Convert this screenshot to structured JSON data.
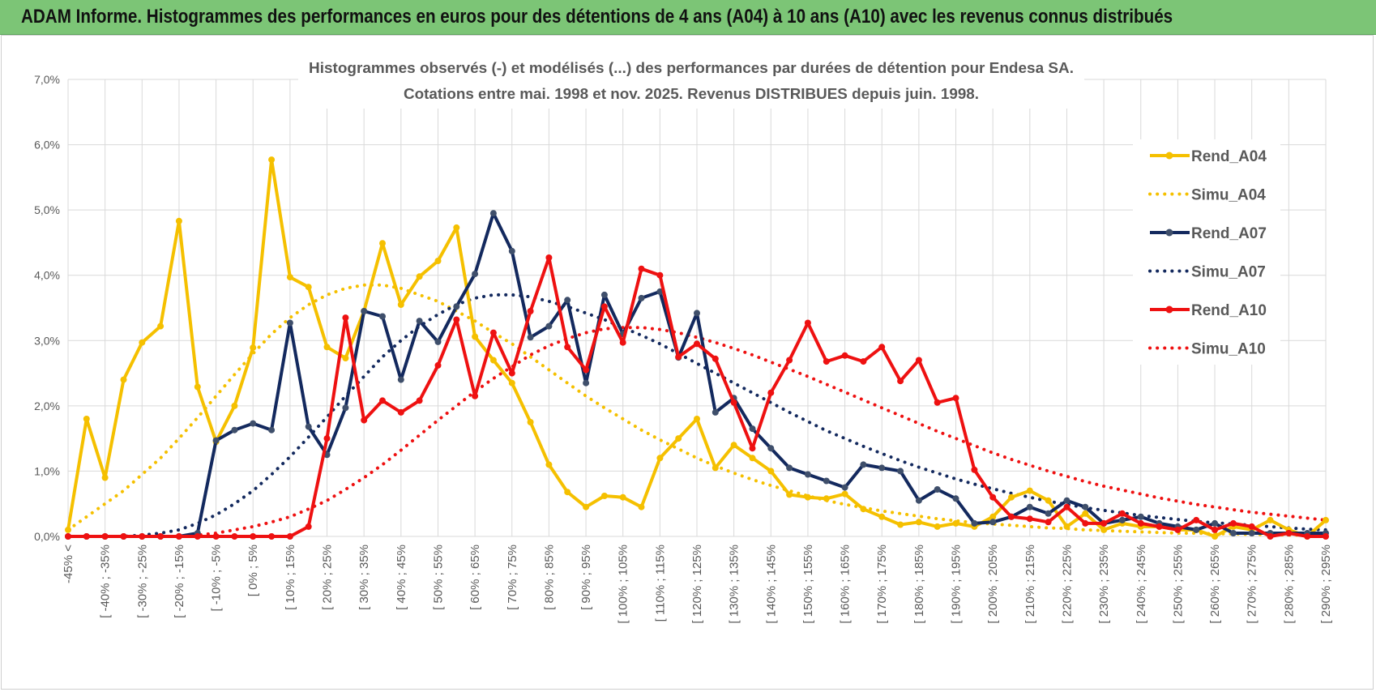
{
  "banner": {
    "title": "ADAM Informe. Histogrammes des performances en euros pour des détentions de 4 ans (A04) à 10 ans (A10) avec les revenus connus distribués"
  },
  "colors": {
    "banner_bg": "#7cc576",
    "A04": "#f5c000",
    "A07": "#13295e",
    "A10": "#ee1111",
    "grid": "#d9d9d9"
  },
  "chart_data": {
    "type": "line",
    "title": "Histogrammes observés (-) et modélisés (...) des performances par durées de détention pour Endesa SA.",
    "subtitle": "Cotations entre mai. 1998 et nov. 2025.  Revenus DISTRIBUES depuis juin. 1998.",
    "y_ticks": [
      "0,0%",
      "1,0%",
      "2,0%",
      "3,0%",
      "4,0%",
      "5,0%",
      "6,0%",
      "7,0%"
    ],
    "ylim": [
      0,
      7
    ],
    "y_unit": "%",
    "grid": true,
    "legend_position": "right",
    "x_tick_labels": [
      "-45% <",
      "[ -40% ; -35%",
      "[ -30% ; -25%",
      "[ -20% ; -15%",
      "[ -10% ; -5%",
      "[ 0% ; 5%",
      "[ 10% ; 15%",
      "[ 20% ; 25%",
      "[ 30% ; 35%",
      "[ 40% ; 45%",
      "[ 50% ; 55%",
      "[ 60% ; 65%",
      "[ 70% ; 75%",
      "[ 80% ; 85%",
      "[ 90% ; 95%",
      "[ 100% ; 105%",
      "[ 110% ; 115%",
      "[ 120% ; 125%",
      "[ 130% ; 135%",
      "[ 140% ; 145%",
      "[ 150% ; 155%",
      "[ 160% ; 165%",
      "[ 170% ; 175%",
      "[ 180% ; 185%",
      "[ 190% ; 195%",
      "[ 200% ; 205%",
      "[ 210% ; 215%",
      "[ 220% ; 225%",
      "[ 230% ; 235%",
      "[ 240% ; 245%",
      "[ 250% ; 255%",
      "[ 260% ; 265%",
      "[ 270% ; 275%",
      "[ 280% ; 285%",
      "[ 290% ; 295%"
    ],
    "series": [
      {
        "name": "Rend_A04",
        "style": "solid",
        "color_key": "A04",
        "marker": "circle",
        "values": [
          0.1,
          1.8,
          0.9,
          2.4,
          2.97,
          3.22,
          4.83,
          2.29,
          1.45,
          2.0,
          2.89,
          5.77,
          3.97,
          3.82,
          2.9,
          2.73,
          3.45,
          4.49,
          3.55,
          3.98,
          4.22,
          4.73,
          3.06,
          2.7,
          2.35,
          1.75,
          1.1,
          0.68,
          0.45,
          0.62,
          0.6,
          0.45,
          1.2,
          1.5,
          1.8,
          1.05,
          1.4,
          1.2,
          1.0,
          0.64,
          0.6,
          0.58,
          0.65,
          0.42,
          0.3,
          0.18,
          0.22,
          0.15,
          0.2,
          0.15,
          0.3,
          0.6,
          0.7,
          0.55,
          0.15,
          0.35,
          0.1,
          0.2,
          0.15,
          0.15,
          0.1,
          0.1,
          0.0,
          0.15,
          0.1,
          0.25,
          0.1,
          0.0,
          0.25
        ]
      },
      {
        "name": "Simu_A04",
        "style": "dotted",
        "color_key": "A04",
        "values": [
          0.1,
          0.3,
          0.5,
          0.7,
          0.95,
          1.2,
          1.5,
          1.82,
          2.15,
          2.48,
          2.8,
          3.1,
          3.35,
          3.55,
          3.7,
          3.8,
          3.85,
          3.85,
          3.8,
          3.7,
          3.6,
          3.45,
          3.3,
          3.12,
          2.95,
          2.75,
          2.55,
          2.35,
          2.15,
          1.97,
          1.8,
          1.63,
          1.48,
          1.34,
          1.2,
          1.08,
          0.97,
          0.87,
          0.78,
          0.7,
          0.62,
          0.55,
          0.49,
          0.44,
          0.39,
          0.35,
          0.31,
          0.27,
          0.24,
          0.21,
          0.19,
          0.17,
          0.15,
          0.13,
          0.12,
          0.1,
          0.09,
          0.08,
          0.07,
          0.06,
          0.05,
          0.05,
          0.04,
          0.04,
          0.03,
          0.03,
          0.02,
          0.02,
          0.02
        ]
      },
      {
        "name": "Rend_A07",
        "style": "solid",
        "color_key": "A07",
        "marker": "circle",
        "values": [
          0.0,
          0.0,
          0.0,
          0.0,
          0.0,
          0.0,
          0.0,
          0.05,
          1.47,
          1.63,
          1.73,
          1.63,
          3.27,
          1.68,
          1.25,
          1.97,
          3.45,
          3.37,
          2.4,
          3.3,
          2.98,
          3.52,
          4.02,
          4.95,
          4.37,
          3.05,
          3.22,
          3.62,
          2.35,
          3.7,
          3.1,
          3.65,
          3.75,
          2.74,
          3.42,
          1.9,
          2.12,
          1.65,
          1.35,
          1.05,
          0.95,
          0.85,
          0.75,
          1.1,
          1.05,
          1.0,
          0.55,
          0.72,
          0.58,
          0.2,
          0.22,
          0.3,
          0.45,
          0.35,
          0.55,
          0.45,
          0.2,
          0.25,
          0.3,
          0.2,
          0.15,
          0.1,
          0.2,
          0.05,
          0.05,
          0.05,
          0.05,
          0.05,
          0.05
        ]
      },
      {
        "name": "Simu_A07",
        "style": "dotted",
        "color_key": "A07",
        "values": [
          0.0,
          0.0,
          0.0,
          0.0,
          0.02,
          0.05,
          0.1,
          0.2,
          0.33,
          0.5,
          0.7,
          0.95,
          1.22,
          1.52,
          1.83,
          2.15,
          2.45,
          2.75,
          3.0,
          3.22,
          3.4,
          3.55,
          3.65,
          3.7,
          3.7,
          3.67,
          3.6,
          3.52,
          3.42,
          3.32,
          3.2,
          3.08,
          2.95,
          2.8,
          2.65,
          2.5,
          2.35,
          2.2,
          2.05,
          1.9,
          1.76,
          1.62,
          1.5,
          1.38,
          1.27,
          1.16,
          1.06,
          0.97,
          0.88,
          0.8,
          0.73,
          0.66,
          0.6,
          0.54,
          0.49,
          0.44,
          0.4,
          0.36,
          0.32,
          0.29,
          0.26,
          0.23,
          0.21,
          0.19,
          0.17,
          0.15,
          0.13,
          0.11,
          0.1
        ]
      },
      {
        "name": "Rend_A10",
        "style": "solid",
        "color_key": "A10",
        "marker": "circle",
        "values": [
          0.0,
          0.0,
          0.0,
          0.0,
          0.0,
          0.0,
          0.0,
          0.0,
          0.0,
          0.0,
          0.0,
          0.0,
          0.0,
          0.15,
          1.5,
          3.35,
          1.78,
          2.08,
          1.9,
          2.08,
          2.62,
          3.32,
          2.15,
          3.12,
          2.5,
          3.45,
          4.27,
          2.9,
          2.55,
          3.52,
          2.97,
          4.1,
          4.0,
          2.75,
          2.95,
          2.72,
          2.05,
          1.35,
          2.2,
          2.7,
          3.27,
          2.68,
          2.77,
          2.68,
          2.9,
          2.38,
          2.7,
          2.05,
          2.12,
          1.02,
          0.6,
          0.3,
          0.27,
          0.22,
          0.45,
          0.2,
          0.2,
          0.35,
          0.2,
          0.15,
          0.1,
          0.25,
          0.1,
          0.2,
          0.15,
          0.0,
          0.05,
          0.0,
          0.0
        ]
      },
      {
        "name": "Simu_A10",
        "style": "dotted",
        "color_key": "A10",
        "values": [
          0.0,
          0.0,
          0.0,
          0.0,
          0.0,
          0.0,
          0.0,
          0.02,
          0.05,
          0.1,
          0.15,
          0.22,
          0.3,
          0.42,
          0.55,
          0.72,
          0.9,
          1.1,
          1.32,
          1.55,
          1.78,
          2.0,
          2.22,
          2.42,
          2.6,
          2.78,
          2.92,
          3.03,
          3.12,
          3.18,
          3.2,
          3.2,
          3.17,
          3.12,
          3.05,
          2.97,
          2.88,
          2.78,
          2.67,
          2.56,
          2.45,
          2.33,
          2.21,
          2.09,
          1.97,
          1.85,
          1.73,
          1.61,
          1.5,
          1.39,
          1.28,
          1.18,
          1.09,
          1.0,
          0.92,
          0.84,
          0.77,
          0.71,
          0.65,
          0.59,
          0.54,
          0.49,
          0.45,
          0.41,
          0.37,
          0.34,
          0.31,
          0.28,
          0.25
        ]
      }
    ]
  }
}
